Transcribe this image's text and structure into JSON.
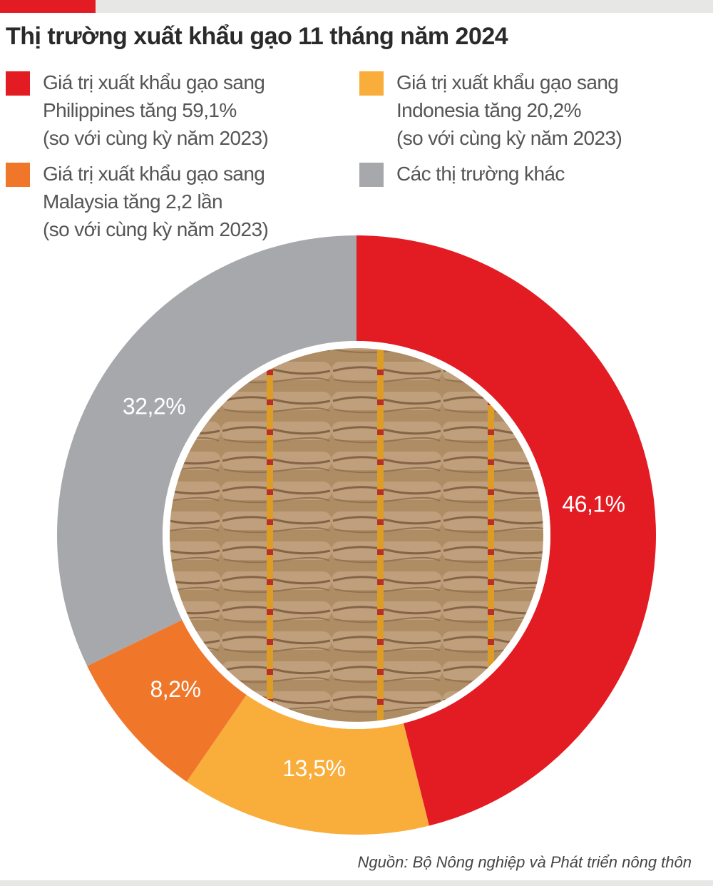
{
  "title": "Thị trường xuất khẩu gạo 11 tháng năm 2024",
  "legend": [
    {
      "text": "Giá trị xuất khẩu gạo sang\nPhilippines tăng 59,1%\n(so với cùng kỳ năm 2023)",
      "color": "#e31b23"
    },
    {
      "text": "Giá trị xuất khẩu gạo sang\nIndonesia tăng 20,2%\n(so với cùng kỳ năm 2023)",
      "color": "#f9ad3b"
    },
    {
      "text": "Giá trị xuất khẩu gạo sang\nMalaysia tăng 2,2 lần\n(so với cùng kỳ năm 2023)",
      "color": "#f0772a"
    },
    {
      "text": "Các thị trường khác",
      "color": "#a7a8ab"
    }
  ],
  "chart_data": {
    "type": "pie",
    "title": "Thị trường xuất khẩu gạo 11 tháng năm 2024",
    "slices": [
      {
        "label": "46,1%",
        "value": 46.1,
        "color": "#e31b23"
      },
      {
        "label": "13,5%",
        "value": 13.5,
        "color": "#f9ad3b"
      },
      {
        "label": "8,2%",
        "value": 8.2,
        "color": "#f0772a"
      },
      {
        "label": "32,2%",
        "value": 32.2,
        "color": "#a7a8ab"
      }
    ],
    "center_image": "rice-sacks-photo"
  },
  "source": "Nguồn: Bộ Nông nghiệp và Phát triển nông thôn"
}
